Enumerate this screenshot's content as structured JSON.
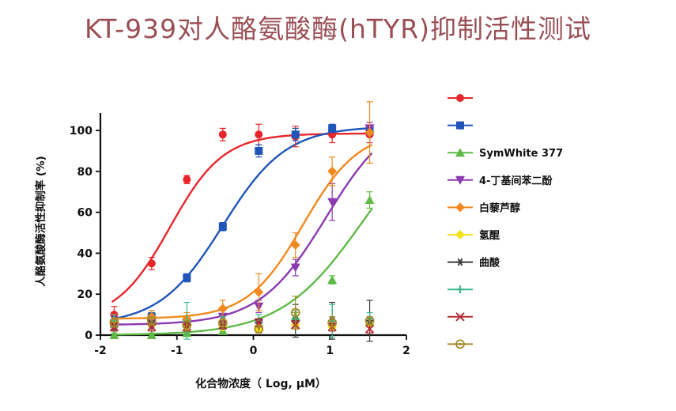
{
  "chart_data": {
    "type": "scatter",
    "title": "KT-939对人酪氨酸酶(hTYR)抑制活性测试",
    "xlabel": "化合物浓度（ Log, μM）",
    "ylabel": "人酪氨酸酶活性抑制率 (%)",
    "ylabel_unit": "(%)",
    "xlim": [
      -2,
      2
    ],
    "ylim": [
      0,
      110
    ],
    "xticks": [
      "-2",
      "-1",
      "0",
      "1",
      "2"
    ],
    "yticks": [
      "0",
      "20",
      "40",
      "60",
      "80",
      "100"
    ],
    "grid": false,
    "legend_position": "right",
    "series": [
      {
        "name": "",
        "color": "#e8262b",
        "marker": "circle",
        "x": [
          -1.82,
          -1.33,
          -0.87,
          -0.4,
          0.07,
          0.55,
          1.03,
          1.52
        ],
        "y": [
          10,
          35,
          76,
          98,
          98,
          97,
          98,
          98
        ],
        "err": [
          4,
          3,
          2,
          3,
          5,
          5,
          4,
          4
        ],
        "fit": {
          "bottom": 7,
          "top": 98.5,
          "ec50": -1.09,
          "hill": 1.25
        }
      },
      {
        "name": "",
        "color": "#1f55b8",
        "marker": "square",
        "x": [
          -1.82,
          -1.33,
          -0.87,
          -0.4,
          0.07,
          0.55,
          1.03,
          1.52
        ],
        "y": [
          6,
          9,
          28,
          53,
          90,
          98,
          101,
          100
        ],
        "err": [
          3,
          2,
          2,
          2,
          3,
          3,
          2,
          2
        ],
        "fit": {
          "bottom": 5,
          "top": 102,
          "ec50": -0.4,
          "hill": 1.05
        }
      },
      {
        "name": "SymWhite 377",
        "color": "#5fba46",
        "marker": "triangle-up",
        "x": [
          -1.82,
          -1.33,
          -0.87,
          -0.4,
          0.07,
          0.55,
          1.03,
          1.52
        ],
        "y": [
          0,
          0,
          1,
          2,
          4,
          9,
          27,
          66
        ],
        "err": [
          1,
          1,
          1,
          1,
          1,
          2,
          2,
          4
        ],
        "fit": {
          "bottom": 0,
          "top": 110,
          "ec50": 1.42,
          "hill": 0.82
        }
      },
      {
        "name": "4-丁基间苯二酚",
        "color": "#8b3ab0",
        "marker": "triangle-down",
        "x": [
          -1.82,
          -1.33,
          -0.87,
          -0.4,
          0.07,
          0.55,
          1.03,
          1.52
        ],
        "y": [
          5,
          6,
          6,
          9,
          14,
          33,
          65,
          101
        ],
        "err": [
          2,
          2,
          2,
          3,
          3,
          4,
          9,
          3
        ],
        "fit": {
          "bottom": 5,
          "top": 110,
          "ec50": 0.95,
          "hill": 1.0
        }
      },
      {
        "name": "白藜芦醇",
        "color": "#f0891e",
        "marker": "diamond",
        "x": [
          -1.82,
          -1.33,
          -0.87,
          -0.4,
          0.07,
          0.55,
          1.03,
          1.52
        ],
        "y": [
          7,
          9,
          8,
          13,
          21,
          44,
          80,
          99
        ],
        "err": [
          3,
          3,
          3,
          4,
          9,
          6,
          7,
          15
        ],
        "fit": {
          "bottom": 8,
          "top": 100,
          "ec50": 0.65,
          "hill": 1.2
        }
      },
      {
        "name": "氢醌",
        "color": "#f4e21a",
        "marker": "diamond",
        "x": [
          -1.82,
          -1.33,
          -0.87,
          -0.4,
          0.07,
          0.55,
          1.03,
          1.52
        ],
        "y": [
          5,
          5,
          4,
          4,
          3,
          5,
          4,
          5
        ],
        "err": [
          1,
          1,
          1,
          1,
          1,
          2,
          1,
          1
        ]
      },
      {
        "name": "曲酸",
        "color": "#3a3a3a",
        "marker": "star",
        "x": [
          -1.82,
          -1.33,
          -0.87,
          -0.4,
          0.07,
          0.55,
          1.03,
          1.52
        ],
        "y": [
          4,
          5,
          5,
          5,
          6,
          7,
          7,
          7
        ],
        "err": [
          2,
          2,
          2,
          2,
          2,
          8,
          9,
          10
        ]
      },
      {
        "name": "",
        "color": "#3db88a",
        "marker": "plus",
        "x": [
          -1.82,
          -1.33,
          -0.87,
          -0.4,
          0.07,
          0.55,
          1.03,
          1.52
        ],
        "y": [
          7,
          6,
          7,
          6,
          7,
          8,
          7,
          8
        ],
        "err": [
          3,
          3,
          9,
          3,
          3,
          4,
          8,
          3
        ]
      },
      {
        "name": "",
        "color": "#b52b35",
        "marker": "x",
        "x": [
          -1.82,
          -1.33,
          -0.87,
          -0.4,
          0.07,
          0.55,
          1.03,
          1.52
        ],
        "y": [
          4,
          4,
          4,
          5,
          6,
          5,
          4,
          3
        ],
        "err": [
          2,
          2,
          2,
          2,
          2,
          2,
          2,
          2
        ]
      },
      {
        "name": "",
        "color": "#a8892a",
        "marker": "circle-dot",
        "x": [
          -1.82,
          -1.33,
          -0.87,
          -0.4,
          0.07,
          0.55,
          1.03,
          1.52
        ],
        "y": [
          6,
          7,
          5,
          6,
          3,
          11,
          6,
          7
        ],
        "err": [
          2,
          2,
          2,
          2,
          2,
          8,
          3,
          2
        ]
      }
    ]
  }
}
